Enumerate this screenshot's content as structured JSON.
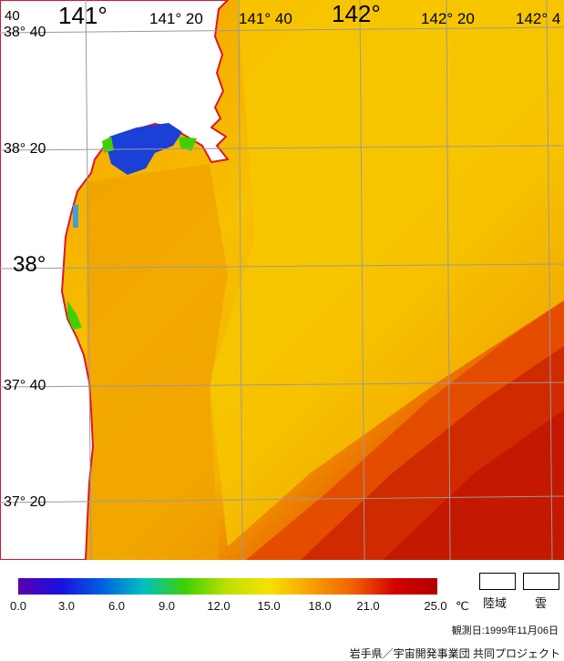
{
  "map": {
    "lon_labels": [
      "141°",
      "141° 20",
      "141° 40",
      "142°",
      "142° 20",
      "142° 4"
    ],
    "lat_labels": [
      "38° 40",
      "38° 20",
      "38°",
      "37° 40",
      "37° 20"
    ],
    "corner_label": "40",
    "colors": {
      "coast_line": "#e0142a",
      "land": "#ffffff",
      "grid": "#9a9a9a",
      "sea_warm": "#f0a000",
      "sea_mid": "#f6c400",
      "sea_hot": "#d43a00"
    }
  },
  "legend": {
    "ticks": [
      "0.0",
      "3.0",
      "6.0",
      "9.0",
      "12.0",
      "15.0",
      "18.0",
      "21.0",
      "25.0"
    ],
    "unit": "℃",
    "land_label": "陸域",
    "cloud_label": "雲",
    "gradient": [
      "#5b00b0",
      "#1a10e0",
      "#0060e0",
      "#00c0c0",
      "#40d000",
      "#c0e000",
      "#f8e000",
      "#f8a000",
      "#f06000",
      "#d40000",
      "#b00000"
    ]
  },
  "footer": {
    "date": "観測日:1999年11月06日",
    "credit": "岩手県／宇宙開発事業団 共同プロジェクト"
  }
}
